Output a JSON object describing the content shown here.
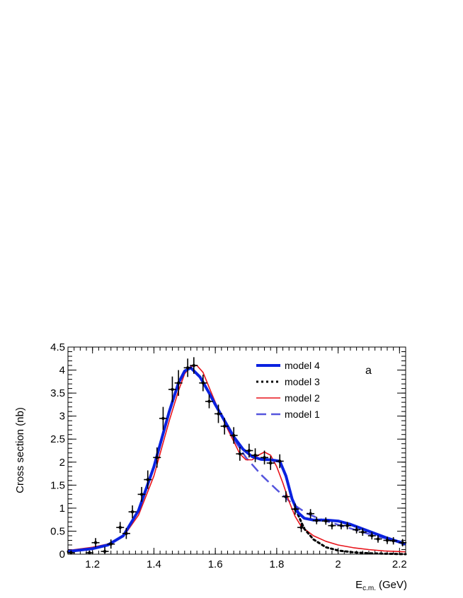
{
  "chart_data": {
    "type": "scatter",
    "panel_label": "a",
    "xlabel_main": "E",
    "xlabel_sub": "c.m.",
    "xlabel_unit": "(GeV)",
    "ylabel": "Cross section (nb)",
    "xlim": [
      1.12,
      2.22
    ],
    "ylim": [
      0,
      4.5
    ],
    "x_ticks": [
      "1.2",
      "1.4",
      "1.6",
      "1.8",
      "2",
      "2.2"
    ],
    "y_ticks": [
      "0",
      "0.5",
      "1",
      "1.5",
      "2",
      "2.5",
      "3",
      "3.5",
      "4",
      "4.5"
    ],
    "legend_position": "top-center",
    "data_points": {
      "x": [
        1.13,
        1.19,
        1.21,
        1.24,
        1.26,
        1.29,
        1.31,
        1.33,
        1.36,
        1.38,
        1.41,
        1.43,
        1.46,
        1.48,
        1.51,
        1.53,
        1.56,
        1.58,
        1.61,
        1.63,
        1.66,
        1.68,
        1.71,
        1.73,
        1.76,
        1.78,
        1.81,
        1.83,
        1.86,
        1.88,
        1.91,
        1.93,
        1.96,
        1.98,
        2.01,
        2.03,
        2.06,
        2.08,
        2.11,
        2.13,
        2.16,
        2.18,
        2.21
      ],
      "y": [
        0.03,
        0.03,
        0.25,
        0.06,
        0.22,
        0.58,
        0.45,
        0.92,
        1.3,
        1.62,
        2.1,
        2.95,
        3.58,
        3.72,
        4.05,
        4.1,
        3.72,
        3.32,
        3.05,
        2.78,
        2.58,
        2.18,
        2.25,
        2.15,
        2.1,
        1.98,
        2.02,
        1.25,
        0.98,
        0.58,
        0.88,
        0.73,
        0.72,
        0.62,
        0.62,
        0.62,
        0.53,
        0.48,
        0.4,
        0.33,
        0.3,
        0.29,
        0.25
      ],
      "yerr": [
        0.05,
        0.05,
        0.1,
        0.1,
        0.1,
        0.12,
        0.12,
        0.14,
        0.16,
        0.2,
        0.22,
        0.25,
        0.28,
        0.28,
        0.2,
        0.18,
        0.18,
        0.15,
        0.2,
        0.18,
        0.18,
        0.15,
        0.15,
        0.15,
        0.15,
        0.15,
        0.15,
        0.12,
        0.12,
        0.1,
        0.1,
        0.08,
        0.08,
        0.08,
        0.08,
        0.08,
        0.08,
        0.08,
        0.08,
        0.08,
        0.08,
        0.08,
        0.08
      ]
    },
    "series": [
      {
        "name": "model 4",
        "color": "#0a22e0",
        "style": "thick-solid",
        "x": [
          1.12,
          1.2,
          1.25,
          1.3,
          1.35,
          1.4,
          1.45,
          1.48,
          1.5,
          1.52,
          1.55,
          1.58,
          1.6,
          1.63,
          1.66,
          1.69,
          1.72,
          1.75,
          1.78,
          1.81,
          1.83,
          1.85,
          1.87,
          1.89,
          1.92,
          1.96,
          2.0,
          2.04,
          2.08,
          2.12,
          2.16,
          2.22
        ],
        "y": [
          0.06,
          0.12,
          0.2,
          0.4,
          0.95,
          1.9,
          3.1,
          3.72,
          3.98,
          4.05,
          3.85,
          3.5,
          3.25,
          2.9,
          2.55,
          2.28,
          2.12,
          2.06,
          2.05,
          2.02,
          1.7,
          1.2,
          0.9,
          0.78,
          0.74,
          0.74,
          0.72,
          0.65,
          0.55,
          0.45,
          0.35,
          0.22
        ]
      },
      {
        "name": "model 3",
        "color": "#000000",
        "style": "dotted",
        "x": [
          1.12,
          1.2,
          1.25,
          1.3,
          1.35,
          1.4,
          1.45,
          1.48,
          1.5,
          1.52,
          1.55,
          1.58,
          1.6,
          1.63,
          1.66,
          1.69,
          1.72,
          1.75,
          1.78,
          1.81,
          1.83,
          1.85,
          1.87,
          1.89,
          1.92,
          1.96,
          2.0,
          2.05,
          2.1,
          2.15,
          2.22
        ],
        "y": [
          0.06,
          0.12,
          0.2,
          0.4,
          0.95,
          1.9,
          3.1,
          3.72,
          3.98,
          4.05,
          3.85,
          3.5,
          3.25,
          2.9,
          2.55,
          2.28,
          2.12,
          2.06,
          2.05,
          2.02,
          1.7,
          1.2,
          0.85,
          0.55,
          0.32,
          0.15,
          0.08,
          0.04,
          0.02,
          0.01,
          0.0
        ]
      },
      {
        "name": "model 2",
        "color": "#e8141b",
        "style": "solid",
        "x": [
          1.12,
          1.2,
          1.25,
          1.3,
          1.35,
          1.4,
          1.45,
          1.48,
          1.5,
          1.52,
          1.54,
          1.56,
          1.58,
          1.6,
          1.63,
          1.66,
          1.68,
          1.7,
          1.72,
          1.74,
          1.76,
          1.78,
          1.8,
          1.82,
          1.84,
          1.86,
          1.88,
          1.92,
          1.96,
          2.0,
          2.05,
          2.1,
          2.15,
          2.22
        ],
        "y": [
          0.08,
          0.15,
          0.22,
          0.38,
          0.85,
          1.7,
          2.9,
          3.55,
          3.92,
          4.08,
          4.1,
          3.95,
          3.62,
          3.3,
          2.85,
          2.45,
          2.18,
          2.05,
          2.05,
          2.15,
          2.22,
          2.15,
          1.9,
          1.55,
          1.15,
          0.82,
          0.6,
          0.4,
          0.28,
          0.2,
          0.14,
          0.1,
          0.07,
          0.05
        ]
      },
      {
        "name": "model 1",
        "color": "#5555dd",
        "style": "dashed",
        "x": [
          1.12,
          1.2,
          1.25,
          1.3,
          1.35,
          1.4,
          1.45,
          1.48,
          1.5,
          1.52,
          1.55,
          1.58,
          1.6,
          1.63,
          1.66,
          1.7,
          1.75,
          1.8,
          1.85,
          1.9,
          1.95,
          2.0,
          2.05,
          2.1,
          2.15,
          2.22
        ],
        "y": [
          0.06,
          0.12,
          0.2,
          0.4,
          0.95,
          1.9,
          3.1,
          3.72,
          3.98,
          4.05,
          3.85,
          3.5,
          3.25,
          2.9,
          2.5,
          2.1,
          1.72,
          1.4,
          1.1,
          0.88,
          0.74,
          0.64,
          0.54,
          0.44,
          0.35,
          0.25
        ]
      }
    ]
  }
}
